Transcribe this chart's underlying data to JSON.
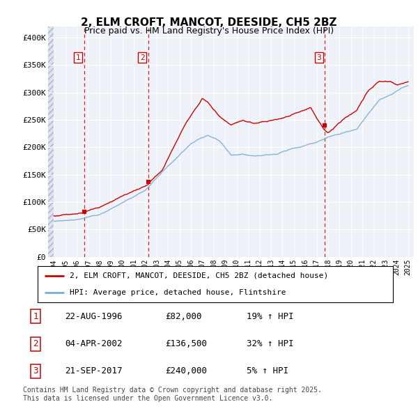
{
  "title": "2, ELM CROFT, MANCOT, DEESIDE, CH5 2BZ",
  "subtitle": "Price paid vs. HM Land Registry's House Price Index (HPI)",
  "transactions": [
    {
      "num": 1,
      "date": "22-AUG-1996",
      "price": 82000,
      "year": 1996.64,
      "pct": "19%",
      "dir": "↑"
    },
    {
      "num": 2,
      "date": "04-APR-2002",
      "price": 136500,
      "year": 2002.25,
      "pct": "32%",
      "dir": "↑"
    },
    {
      "num": 3,
      "date": "21-SEP-2017",
      "price": 240000,
      "year": 2017.72,
      "pct": "5%",
      "dir": "↑"
    }
  ],
  "legend_label_red": "2, ELM CROFT, MANCOT, DEESIDE, CH5 2BZ (detached house)",
  "legend_label_blue": "HPI: Average price, detached house, Flintshire",
  "footnote": "Contains HM Land Registry data © Crown copyright and database right 2025.\nThis data is licensed under the Open Government Licence v3.0.",
  "table_rows": [
    {
      "num": 1,
      "date": "22-AUG-1996",
      "price": "£82,000",
      "pct": "19% ↑ HPI"
    },
    {
      "num": 2,
      "date": "04-APR-2002",
      "price": "£136,500",
      "pct": "32% ↑ HPI"
    },
    {
      "num": 3,
      "date": "21-SEP-2017",
      "price": "£240,000",
      "pct": "5% ↑ HPI"
    }
  ],
  "xlim": [
    1993.5,
    2025.5
  ],
  "ylim": [
    0,
    420000
  ],
  "yticks": [
    0,
    50000,
    100000,
    150000,
    200000,
    250000,
    300000,
    350000,
    400000
  ],
  "ytick_labels": [
    "£0",
    "£50K",
    "£100K",
    "£150K",
    "£200K",
    "£250K",
    "£300K",
    "£350K",
    "£400K"
  ],
  "bg_color": "#eef2f8",
  "hatch_bg": "#dde3ec",
  "grid_color": "#ffffff",
  "red_color": "#cc0000",
  "blue_color": "#7aadd4",
  "title_fontsize": 11,
  "subtitle_fontsize": 9
}
